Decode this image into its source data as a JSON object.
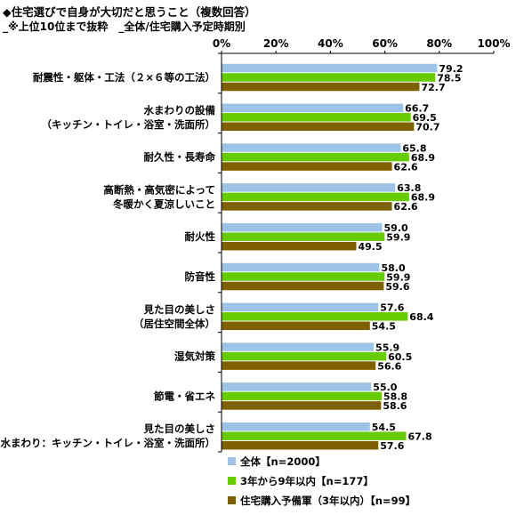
{
  "title": "◆住宅選びで自身が大切だと思うこと（複数回答）",
  "subtitle": "_※上位10位まで抜粋　_全体/住宅購入予定時期別",
  "colors": {
    "series0": "#9dc3e6",
    "series1": "#66cc00",
    "series2": "#7f6000",
    "axis": "#000000",
    "grid": "#888888"
  },
  "chart_data": {
    "type": "bar",
    "orientation": "horizontal",
    "xlim": [
      0,
      100
    ],
    "xticks": [
      "0%",
      "20%",
      "40%",
      "60%",
      "80%",
      "100%"
    ],
    "grid": false,
    "legend_position": "bottom",
    "categories": [
      [
        "耐震性・躯体・工法（２×６等の工法）"
      ],
      [
        "水まわりの設備",
        "（キッチン・トイレ・浴室・洗面所）"
      ],
      [
        "耐久性・長寿命"
      ],
      [
        "高断熱・高気密によって",
        "冬暖かく夏涼しいこと"
      ],
      [
        "耐火性"
      ],
      [
        "防音性"
      ],
      [
        "見た目の美しさ",
        "（居住空間全体）"
      ],
      [
        "湿気対策"
      ],
      [
        "節電・省エネ"
      ],
      [
        "見た目の美しさ",
        "（水まわり：キッチン・トイレ・浴室・洗面所）"
      ]
    ],
    "series": [
      {
        "name": "全体【n=2000】",
        "values": [
          79.2,
          66.7,
          65.8,
          63.8,
          59.0,
          58.0,
          57.6,
          55.9,
          55.0,
          54.5
        ]
      },
      {
        "name": "3年から9年以内【n=177】",
        "values": [
          78.5,
          69.5,
          68.9,
          68.9,
          59.9,
          59.9,
          68.4,
          60.5,
          58.8,
          67.8
        ]
      },
      {
        "name": "住宅購入予備軍（3年以内）【n=99】",
        "values": [
          72.7,
          70.7,
          62.6,
          62.6,
          49.5,
          59.6,
          54.5,
          56.6,
          58.6,
          57.6
        ]
      }
    ]
  }
}
